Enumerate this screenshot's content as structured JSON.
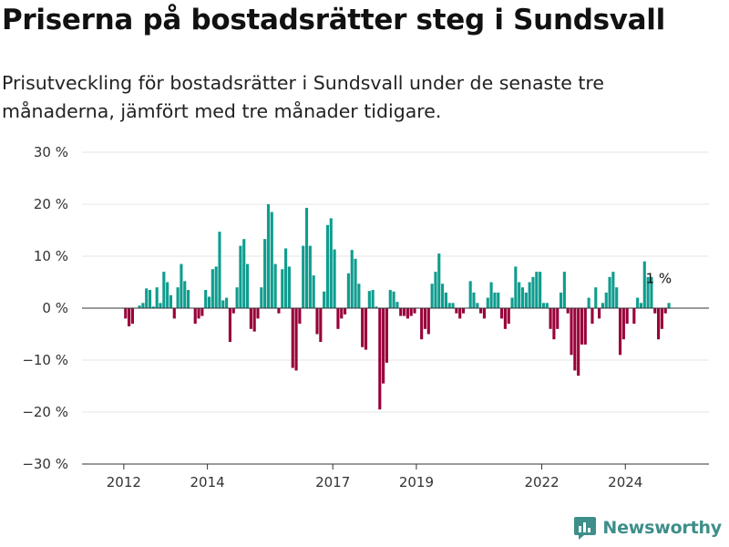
{
  "title": "Priserna på bostadsrätter steg i Sundsvall",
  "subtitle": "Prisutveckling för bostadsrätter i Sundsvall under de senaste tre månaderna, jämfört med tre månader tidigare.",
  "brand": {
    "name": "Newsworthy",
    "color": "#3e8e8a"
  },
  "chart_data": {
    "type": "bar",
    "title": "Priserna på bostadsrätter steg i Sundsvall",
    "subtitle": "Prisutveckling för bostadsrätter i Sundsvall under de senaste tre månaderna, jämfört med tre månader tidigare.",
    "xlabel": "",
    "ylabel": "",
    "x_start": "2012-01",
    "x_interval": "month",
    "xlim": [
      "2011-01",
      "2025-12"
    ],
    "ylim": [
      -30,
      30
    ],
    "yticks": [
      30,
      20,
      10,
      0,
      -10,
      -20,
      -30
    ],
    "ytick_labels": [
      "30 %",
      "20 %",
      "10 %",
      "0 %",
      "−10 %",
      "−20 %",
      "−30 %"
    ],
    "xticks": [
      "2012",
      "2014",
      "2017",
      "2019",
      "2022",
      "2024"
    ],
    "grid": true,
    "legend": "none",
    "colors": {
      "positive": "#0f9d8f",
      "negative": "#99003a"
    },
    "annotation": {
      "text": "1 %",
      "x": "2024-10",
      "y": 1
    },
    "values": [
      -2,
      -3.5,
      -3,
      0,
      0.5,
      1,
      3.8,
      3.5,
      0.3,
      4,
      1,
      7,
      5,
      2.5,
      -2,
      4,
      8.5,
      5.2,
      3.5,
      0,
      -3,
      -2,
      -1.5,
      3.5,
      2.2,
      7.5,
      8,
      14.7,
      1.5,
      2,
      -6.5,
      -1,
      4,
      12,
      13.3,
      8.5,
      -4,
      -4.5,
      -2,
      4,
      13.3,
      20,
      18.5,
      8.5,
      -1,
      7.5,
      11.5,
      8,
      -11.5,
      -12,
      -3,
      12,
      19.3,
      12,
      6.3,
      -5,
      -6.5,
      3.2,
      16,
      17.3,
      11.3,
      -4,
      -2,
      -1.2,
      6.7,
      11.2,
      9.5,
      4.7,
      -7.5,
      -8,
      3.3,
      3.5,
      0.3,
      -19.5,
      -14.5,
      -10.5,
      3.5,
      3.2,
      1.2,
      -1.5,
      -1.5,
      -2,
      -1.5,
      -1,
      0,
      -6,
      -4,
      -5,
      4.7,
      7,
      10.5,
      4.7,
      3,
      1,
      1,
      -1,
      -2,
      -1,
      0,
      5.2,
      3,
      1,
      -1,
      -2,
      2,
      5,
      3,
      3,
      -2,
      -4,
      -3,
      2,
      8,
      5,
      4,
      3,
      5,
      6,
      7,
      7,
      1,
      1,
      -4,
      -6,
      -4,
      3,
      7,
      -1,
      -9,
      -12,
      -13,
      -7,
      -7,
      2,
      -3,
      4,
      -2,
      1,
      3,
      6,
      7,
      4,
      -9,
      -6,
      -3,
      0,
      -3,
      2,
      1,
      9,
      6,
      6,
      -1,
      -6,
      -4,
      -1,
      1
    ]
  }
}
